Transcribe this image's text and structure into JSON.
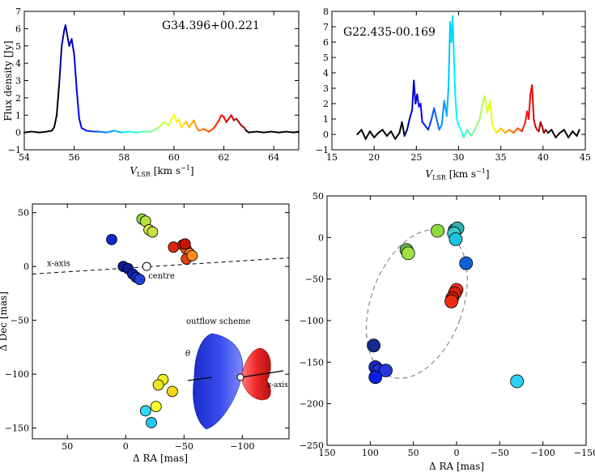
{
  "chart_data": [
    {
      "type": "line",
      "title": "G34.396+00.221",
      "xlabel": "V_LSR [km s⁻¹]",
      "xlabel_main": "V",
      "xlabel_sub": "LSR",
      "xlabel_unit": " [km s",
      "xlabel_sup": "−1",
      "xlabel_end": "]",
      "ylabel": "Flux density [Jy]",
      "xlim": [
        54,
        65
      ],
      "ylim": [
        -1,
        7
      ],
      "xticks": [
        54,
        56,
        58,
        60,
        62,
        64
      ],
      "xticklabels": [
        "54",
        "56",
        "58",
        "60",
        "62",
        "64"
      ],
      "yticks": [
        -1,
        0,
        1,
        2,
        3,
        4,
        5,
        6,
        7
      ],
      "yticklabels": [
        "−1",
        "0",
        "1",
        "2",
        "3",
        "4",
        "5",
        "6",
        "7"
      ],
      "color_range": [
        55.4,
        62.9
      ],
      "x": [
        54.0,
        54.3,
        54.6,
        54.9,
        55.1,
        55.2,
        55.3,
        55.4,
        55.5,
        55.6,
        55.65,
        55.7,
        55.8,
        55.9,
        56.0,
        56.1,
        56.2,
        56.3,
        56.5,
        56.8,
        57.0,
        57.3,
        57.6,
        57.9,
        58.2,
        58.5,
        58.8,
        59.1,
        59.4,
        59.6,
        59.8,
        59.9,
        60.0,
        60.1,
        60.2,
        60.3,
        60.4,
        60.5,
        60.6,
        60.7,
        60.8,
        60.9,
        61.0,
        61.2,
        61.4,
        61.6,
        61.8,
        61.9,
        62.0,
        62.1,
        62.2,
        62.3,
        62.4,
        62.5,
        62.6,
        62.7,
        62.8,
        62.9,
        63.0,
        63.3,
        63.6,
        63.9,
        64.2,
        64.5,
        64.8,
        65.0
      ],
      "y": [
        0.0,
        0.05,
        0.0,
        0.05,
        0.1,
        0.3,
        1.0,
        2.8,
        5.0,
        5.9,
        6.2,
        5.8,
        5.0,
        5.4,
        4.5,
        2.5,
        0.8,
        0.25,
        0.1,
        0.05,
        0.05,
        0.0,
        0.1,
        0.0,
        0.05,
        0.0,
        0.05,
        0.05,
        0.3,
        0.6,
        0.4,
        0.8,
        1.0,
        0.6,
        0.75,
        0.3,
        0.5,
        0.6,
        0.3,
        0.5,
        0.7,
        0.3,
        0.1,
        0.2,
        0.05,
        0.25,
        0.7,
        1.0,
        0.9,
        0.6,
        0.8,
        1.0,
        0.7,
        0.8,
        0.6,
        0.4,
        0.3,
        0.1,
        0.0,
        0.05,
        0.0,
        0.05,
        0.0,
        0.05,
        0.0,
        0.05
      ]
    },
    {
      "type": "line",
      "title": "G22.435-00.169",
      "xlabel": "V_LSR [km s⁻¹]",
      "xlabel_main": "V",
      "xlabel_sub": "LSR",
      "xlabel_unit": " [km s",
      "xlabel_sup": "−1",
      "xlabel_end": "]",
      "xlim": [
        15,
        45
      ],
      "ylim": [
        -1,
        8
      ],
      "xticks": [
        15,
        20,
        25,
        30,
        35,
        40,
        45
      ],
      "xticklabels": [
        "15",
        "20",
        "25",
        "30",
        "35",
        "40",
        "45"
      ],
      "yticks": [
        -1,
        0,
        1,
        2,
        3,
        4,
        5,
        6,
        7,
        8
      ],
      "yticklabels": [
        "−1",
        "0",
        "1",
        "2",
        "3",
        "4",
        "5",
        "6",
        "7",
        "8"
      ],
      "color_range": [
        23.5,
        40.5
      ],
      "x": [
        18.0,
        18.5,
        19.0,
        19.5,
        20.0,
        20.5,
        21.0,
        21.5,
        22.0,
        22.5,
        23.0,
        23.3,
        23.6,
        23.9,
        24.2,
        24.5,
        24.7,
        24.9,
        25.1,
        25.3,
        25.5,
        25.7,
        26.0,
        26.4,
        26.8,
        27.1,
        27.4,
        27.7,
        28.0,
        28.3,
        28.6,
        28.8,
        29.0,
        29.15,
        29.3,
        29.45,
        29.6,
        29.8,
        30.0,
        30.3,
        30.6,
        31.0,
        31.5,
        32.0,
        32.5,
        32.8,
        33.1,
        33.4,
        33.7,
        34.0,
        34.5,
        35.0,
        35.5,
        36.0,
        36.5,
        37.0,
        37.5,
        37.9,
        38.1,
        38.3,
        38.5,
        38.7,
        38.9,
        39.1,
        39.3,
        39.5,
        39.7,
        39.9,
        40.1,
        40.3,
        40.6,
        41.0,
        41.5,
        42.0,
        42.5,
        43.0,
        43.5,
        44.0,
        44.3
      ],
      "y": [
        0.0,
        0.3,
        -0.3,
        0.2,
        -0.2,
        0.1,
        0.3,
        -0.1,
        0.2,
        -0.3,
        0.1,
        0.8,
        -0.1,
        0.3,
        1.0,
        1.6,
        3.5,
        2.0,
        2.6,
        1.8,
        2.0,
        0.8,
        0.6,
        0.3,
        1.0,
        1.7,
        1.0,
        0.3,
        0.6,
        2.2,
        1.2,
        3.0,
        7.3,
        6.0,
        7.7,
        5.0,
        2.5,
        1.0,
        0.6,
        0.3,
        -0.2,
        0.3,
        -0.1,
        0.4,
        1.0,
        1.9,
        2.5,
        1.4,
        2.2,
        0.6,
        0.1,
        0.4,
        0.1,
        0.3,
        0.1,
        0.4,
        0.2,
        0.8,
        1.5,
        1.0,
        2.6,
        3.2,
        1.0,
        0.5,
        0.3,
        0.2,
        0.8,
        0.5,
        0.1,
        0.3,
        0.1,
        0.3,
        -0.2,
        0.1,
        0.3,
        -0.2,
        0.2,
        -0.1,
        0.3
      ]
    },
    {
      "type": "scatter",
      "xlabel": "Δ RA [mas]",
      "ylabel": "Δ Dec [mas]",
      "xlim": [
        80,
        -140
      ],
      "ylim": [
        -160,
        58
      ],
      "xticks": [
        50,
        0,
        -50,
        -100
      ],
      "xticklabels": [
        "50",
        "0",
        "−50",
        "−100"
      ],
      "yticks": [
        -150,
        -100,
        -50,
        0,
        50
      ],
      "yticklabels": [
        "−150",
        "−100",
        "−50",
        "0",
        "50"
      ],
      "axis_line": {
        "x": [
          80,
          -140
        ],
        "y": [
          -7,
          8
        ],
        "label": "x-axis"
      },
      "centre": {
        "x": -18,
        "y": 0,
        "label": "centre"
      },
      "inset": {
        "title": "outflow scheme",
        "theta_label": "θ",
        "axis_label": "x-axis"
      },
      "points": [
        {
          "x": 12,
          "y": 25,
          "c": "#0a2bd0"
        },
        {
          "x": 2,
          "y": 0,
          "c": "#101a9a"
        },
        {
          "x": -2,
          "y": -2,
          "c": "#121a92"
        },
        {
          "x": -6,
          "y": -7,
          "c": "#1020a8"
        },
        {
          "x": -9,
          "y": -10,
          "c": "#1828c0"
        },
        {
          "x": -12,
          "y": -12,
          "c": "#2040d8"
        },
        {
          "x": -14,
          "y": 44,
          "c": "#8fd23c"
        },
        {
          "x": -17,
          "y": 42,
          "c": "#b6e040"
        },
        {
          "x": -20,
          "y": 34,
          "c": "#d8e43c"
        },
        {
          "x": -23,
          "y": 32,
          "c": "#c8e048"
        },
        {
          "x": -41,
          "y": 18,
          "c": "#e02810"
        },
        {
          "x": -49,
          "y": 20,
          "c": "#d01c0c"
        },
        {
          "x": -52,
          "y": 16,
          "c": "#f04a18"
        },
        {
          "x": -55,
          "y": 12,
          "c": "#f8781c"
        },
        {
          "x": -52,
          "y": 7,
          "c": "#e04014"
        },
        {
          "x": -57,
          "y": 10,
          "c": "#ff8c20"
        },
        {
          "x": -51,
          "y": 21,
          "c": "#c81408"
        },
        {
          "x": -32,
          "y": -105,
          "c": "#f0f020"
        },
        {
          "x": -40,
          "y": -116,
          "c": "#f4d818"
        },
        {
          "x": -26,
          "y": -130,
          "c": "#ffff30"
        },
        {
          "x": -17,
          "y": -134,
          "c": "#30d8f0"
        },
        {
          "x": -22,
          "y": -145,
          "c": "#20c8f4"
        },
        {
          "x": -28,
          "y": -110,
          "c": "#e8e824"
        }
      ]
    },
    {
      "type": "scatter",
      "xlabel": "Δ RA [mas]",
      "xlim": [
        150,
        -150
      ],
      "ylim": [
        -250,
        50
      ],
      "xticks": [
        150,
        100,
        50,
        0,
        -50,
        -100,
        -150
      ],
      "xticklabels": [
        "150",
        "100",
        "50",
        "0",
        "−50",
        "−100",
        "−150"
      ],
      "yticks": [
        -250,
        -200,
        -150,
        -100,
        -50,
        0,
        50
      ],
      "yticklabels": [
        "−250",
        "−200",
        "−150",
        "−100",
        "−50",
        "0",
        "50"
      ],
      "ellipse": {
        "cx": 46,
        "cy": -80,
        "rx": 53,
        "ry": 93,
        "angle_deg": 20
      },
      "points": [
        {
          "x": 22,
          "y": 8,
          "c": "#90d840"
        },
        {
          "x": 58,
          "y": -15,
          "c": "#60b84c"
        },
        {
          "x": 56,
          "y": -19,
          "c": "#a0e040"
        },
        {
          "x": 2,
          "y": 9,
          "c": "#28a0a0"
        },
        {
          "x": -1,
          "y": 11,
          "c": "#30b0b0"
        },
        {
          "x": 3,
          "y": 5,
          "c": "#40c8c8"
        },
        {
          "x": 1,
          "y": -2,
          "c": "#20c0e0"
        },
        {
          "x": -11,
          "y": -31,
          "c": "#1060d8"
        },
        {
          "x": 0,
          "y": -63,
          "c": "#f03418"
        },
        {
          "x": 2,
          "y": -67,
          "c": "#d82010"
        },
        {
          "x": 5,
          "y": -73,
          "c": "#c01808"
        },
        {
          "x": 6,
          "y": -77,
          "c": "#e83010"
        },
        {
          "x": 96,
          "y": -130,
          "c": "#142a90"
        },
        {
          "x": 94,
          "y": -156,
          "c": "#1428c0"
        },
        {
          "x": 90,
          "y": -160,
          "c": "#1c30d0"
        },
        {
          "x": 82,
          "y": -160,
          "c": "#2438d8"
        },
        {
          "x": 94,
          "y": -168,
          "c": "#0c1ee0"
        },
        {
          "x": -70,
          "y": -173,
          "c": "#30d0f0"
        }
      ]
    }
  ]
}
